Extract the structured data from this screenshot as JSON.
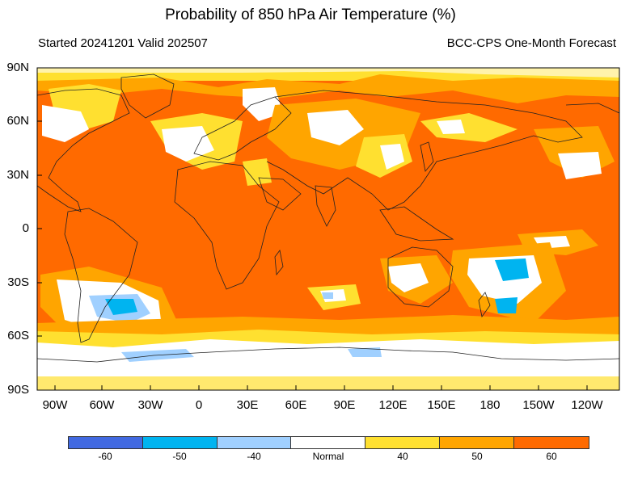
{
  "title": "Probability of 850 hPa Air Temperature (%)",
  "subtitle_left": "Started 20241201  Valid 202507",
  "subtitle_right": "BCC-CPS One-Month Forecast",
  "lat_labels": [
    "90N",
    "60N",
    "30N",
    "0",
    "30S",
    "60S",
    "90S"
  ],
  "lon_labels": [
    "90W",
    "60W",
    "30W",
    "0",
    "30E",
    "60E",
    "90E",
    "120E",
    "150E",
    "180",
    "150W",
    "120W"
  ],
  "legend": {
    "colors": [
      "#4169e1",
      "#00b4f0",
      "#a0d0ff",
      "#ffffff",
      "#ffe030",
      "#ffa500",
      "#ff6a00"
    ],
    "labels": [
      "-60",
      "-50",
      "-40",
      "Normal",
      "40",
      "50",
      "60"
    ]
  }
}
